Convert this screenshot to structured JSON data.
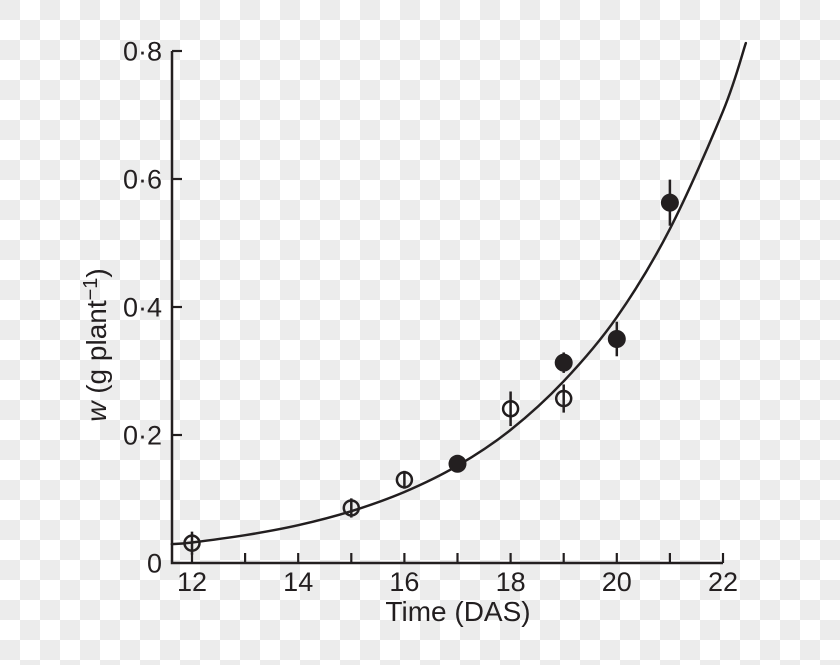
{
  "figure": {
    "background": "transparency-checkerboard",
    "checker_light": "#ffffff",
    "checker_dark": "#ececec",
    "ink": "#231f20"
  },
  "chart_data": {
    "type": "scatter",
    "title": "",
    "xlabel": "Time (DAS)",
    "ylabel": {
      "variable": "w",
      "unit_prefix": " (g plant",
      "superscript": "−1",
      "unit_suffix": ")"
    },
    "xlim": [
      11.62,
      22.43
    ],
    "ylim": [
      0,
      0.8
    ],
    "grid": false,
    "legend": null,
    "x_ticks": [
      12,
      13,
      14,
      15,
      16,
      17,
      18,
      19,
      20,
      21,
      22
    ],
    "x_major_ticks": [
      12,
      14,
      16,
      18,
      20,
      22
    ],
    "x_major_labels": [
      "12",
      "14",
      "16",
      "18",
      "20",
      "22"
    ],
    "y_ticks": [
      0.2,
      0.4,
      0.6,
      0.8
    ],
    "y_labels": [
      {
        "value": 0,
        "label": "0"
      },
      {
        "value": 0.2,
        "label": "0·2"
      },
      {
        "value": 0.4,
        "label": "0·4"
      },
      {
        "value": 0.6,
        "label": "0·6"
      },
      {
        "value": 0.8,
        "label": "0·8"
      }
    ],
    "series": [
      {
        "name": "open-circle-points",
        "marker": "open-circle",
        "points": [
          {
            "x": 12,
            "y": 0.031,
            "err": 0.018
          },
          {
            "x": 15,
            "y": 0.086,
            "err": 0.015
          },
          {
            "x": 16,
            "y": 0.13,
            "err": 0.014
          },
          {
            "x": 18,
            "y": 0.241,
            "err": 0.027
          },
          {
            "x": 19,
            "y": 0.257,
            "err": 0.022
          }
        ]
      },
      {
        "name": "filled-circle-points",
        "marker": "filled-circle",
        "points": [
          {
            "x": 17,
            "y": 0.155,
            "err": 0
          },
          {
            "x": 19,
            "y": 0.313,
            "err": 0.016
          },
          {
            "x": 20,
            "y": 0.35,
            "err": 0.027
          },
          {
            "x": 21,
            "y": 0.563,
            "err": 0.036
          }
        ]
      }
    ],
    "curve": {
      "name": "fitted-growth-curve",
      "points": [
        [
          11.62,
          0.0295
        ],
        [
          12,
          0.032
        ],
        [
          13,
          0.0435
        ],
        [
          14,
          0.059
        ],
        [
          15,
          0.081
        ],
        [
          16,
          0.111
        ],
        [
          17,
          0.152
        ],
        [
          18,
          0.208
        ],
        [
          19,
          0.284
        ],
        [
          20,
          0.384
        ],
        [
          21,
          0.522
        ],
        [
          22,
          0.706
        ],
        [
          22.43,
          0.8124
        ]
      ]
    }
  }
}
